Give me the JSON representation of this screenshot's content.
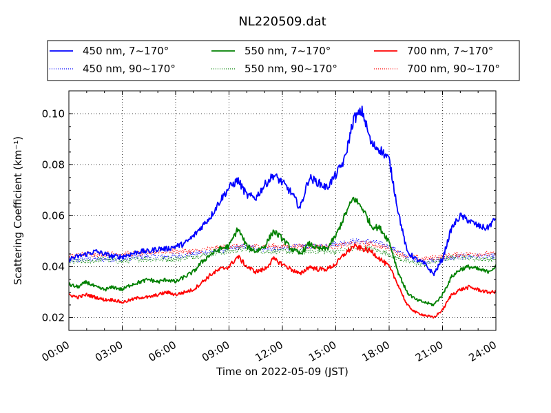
{
  "chart_data": {
    "type": "line",
    "title": "NL220509.dat",
    "xlabel": "Time on 2022-05-09 (JST)",
    "ylabel": "Scattering Coefficient (km⁻¹)",
    "xlim": [
      0,
      24
    ],
    "ylim": [
      0.015,
      0.109
    ],
    "x_ticks": [
      "00:00",
      "03:00",
      "06:00",
      "09:00",
      "12:00",
      "15:00",
      "18:00",
      "21:00",
      "24:00"
    ],
    "y_ticks": [
      "0.02",
      "0.04",
      "0.06",
      "0.08",
      "0.10"
    ],
    "grid": true,
    "legend_position": "top",
    "series": [
      {
        "name": "450 nm, 7∼170°",
        "color": "#0000ff",
        "style": "solid",
        "x": [
          0,
          0.5,
          1,
          1.5,
          2,
          2.5,
          3,
          3.5,
          4,
          4.5,
          5,
          5.5,
          6,
          6.5,
          7,
          7.5,
          8,
          8.5,
          9,
          9.5,
          10,
          10.5,
          11,
          11.5,
          12,
          12.5,
          13,
          13.5,
          14,
          14.5,
          15,
          15.5,
          16,
          16.5,
          17,
          17.5,
          18,
          18.5,
          19,
          19.5,
          20,
          20.5,
          21,
          21.5,
          22,
          22.5,
          23,
          23.5,
          24
        ],
        "y": [
          0.043,
          0.044,
          0.045,
          0.046,
          0.045,
          0.044,
          0.044,
          0.045,
          0.046,
          0.046,
          0.047,
          0.047,
          0.048,
          0.049,
          0.052,
          0.056,
          0.06,
          0.066,
          0.071,
          0.074,
          0.068,
          0.067,
          0.072,
          0.076,
          0.073,
          0.069,
          0.063,
          0.075,
          0.073,
          0.071,
          0.076,
          0.082,
          0.098,
          0.101,
          0.088,
          0.086,
          0.082,
          0.062,
          0.046,
          0.043,
          0.041,
          0.037,
          0.043,
          0.055,
          0.06,
          0.058,
          0.056,
          0.055,
          0.059
        ]
      },
      {
        "name": "450 nm, 90∼170°",
        "color": "#0000ff",
        "style": "dotted",
        "x": [
          0,
          1,
          2,
          3,
          4,
          5,
          6,
          7,
          8,
          9,
          10,
          11,
          12,
          13,
          14,
          15,
          16,
          17,
          18,
          19,
          20,
          21,
          22,
          23,
          24
        ],
        "y": [
          0.042,
          0.043,
          0.043,
          0.043,
          0.044,
          0.044,
          0.044,
          0.045,
          0.046,
          0.047,
          0.048,
          0.047,
          0.047,
          0.048,
          0.048,
          0.049,
          0.05,
          0.05,
          0.048,
          0.044,
          0.042,
          0.043,
          0.044,
          0.044,
          0.044
        ]
      },
      {
        "name": "550 nm, 7∼170°",
        "color": "#008000",
        "style": "solid",
        "x": [
          0,
          0.5,
          1,
          1.5,
          2,
          2.5,
          3,
          3.5,
          4,
          4.5,
          5,
          5.5,
          6,
          6.5,
          7,
          7.5,
          8,
          8.5,
          9,
          9.5,
          10,
          10.5,
          11,
          11.5,
          12,
          12.5,
          13,
          13.5,
          14,
          14.5,
          15,
          15.5,
          16,
          16.5,
          17,
          17.5,
          18,
          18.5,
          19,
          19.5,
          20,
          20.5,
          21,
          21.5,
          22,
          22.5,
          23,
          23.5,
          24
        ],
        "y": [
          0.033,
          0.032,
          0.034,
          0.032,
          0.031,
          0.032,
          0.031,
          0.033,
          0.034,
          0.035,
          0.034,
          0.035,
          0.034,
          0.036,
          0.038,
          0.042,
          0.045,
          0.047,
          0.048,
          0.055,
          0.048,
          0.046,
          0.048,
          0.054,
          0.051,
          0.047,
          0.045,
          0.049,
          0.047,
          0.047,
          0.052,
          0.06,
          0.067,
          0.063,
          0.056,
          0.055,
          0.05,
          0.038,
          0.03,
          0.027,
          0.026,
          0.025,
          0.029,
          0.036,
          0.039,
          0.04,
          0.039,
          0.038,
          0.04
        ]
      },
      {
        "name": "550 nm, 90∼170°",
        "color": "#008000",
        "style": "dotted",
        "x": [
          0,
          1,
          2,
          3,
          4,
          5,
          6,
          7,
          8,
          9,
          10,
          11,
          12,
          13,
          14,
          15,
          16,
          17,
          18,
          19,
          20,
          21,
          22,
          23,
          24
        ],
        "y": [
          0.042,
          0.042,
          0.043,
          0.042,
          0.043,
          0.043,
          0.043,
          0.044,
          0.045,
          0.046,
          0.047,
          0.046,
          0.046,
          0.046,
          0.046,
          0.046,
          0.047,
          0.047,
          0.045,
          0.042,
          0.041,
          0.043,
          0.044,
          0.043,
          0.043
        ]
      },
      {
        "name": "700 nm, 7∼170°",
        "color": "#ff0000",
        "style": "solid",
        "x": [
          0,
          0.5,
          1,
          1.5,
          2,
          2.5,
          3,
          3.5,
          4,
          4.5,
          5,
          5.5,
          6,
          6.5,
          7,
          7.5,
          8,
          8.5,
          9,
          9.5,
          10,
          10.5,
          11,
          11.5,
          12,
          12.5,
          13,
          13.5,
          14,
          14.5,
          15,
          15.5,
          16,
          16.5,
          17,
          17.5,
          18,
          18.5,
          19,
          19.5,
          20,
          20.5,
          21,
          21.5,
          22,
          22.5,
          23,
          23.5,
          24
        ],
        "y": [
          0.029,
          0.028,
          0.029,
          0.028,
          0.027,
          0.027,
          0.026,
          0.027,
          0.028,
          0.028,
          0.029,
          0.03,
          0.029,
          0.03,
          0.031,
          0.034,
          0.037,
          0.039,
          0.04,
          0.044,
          0.04,
          0.038,
          0.039,
          0.043,
          0.041,
          0.039,
          0.037,
          0.04,
          0.039,
          0.039,
          0.041,
          0.045,
          0.048,
          0.047,
          0.046,
          0.043,
          0.04,
          0.033,
          0.025,
          0.022,
          0.021,
          0.02,
          0.023,
          0.029,
          0.031,
          0.032,
          0.031,
          0.03,
          0.03
        ]
      },
      {
        "name": "700 nm, 90∼170°",
        "color": "#ff0000",
        "style": "dotted",
        "x": [
          0,
          1,
          2,
          3,
          4,
          5,
          6,
          7,
          8,
          9,
          10,
          11,
          12,
          13,
          14,
          15,
          16,
          17,
          18,
          19,
          20,
          21,
          22,
          23,
          24
        ],
        "y": [
          0.044,
          0.045,
          0.045,
          0.045,
          0.045,
          0.046,
          0.046,
          0.046,
          0.047,
          0.048,
          0.048,
          0.048,
          0.048,
          0.048,
          0.048,
          0.048,
          0.049,
          0.049,
          0.047,
          0.044,
          0.043,
          0.044,
          0.045,
          0.045,
          0.045
        ]
      }
    ]
  }
}
